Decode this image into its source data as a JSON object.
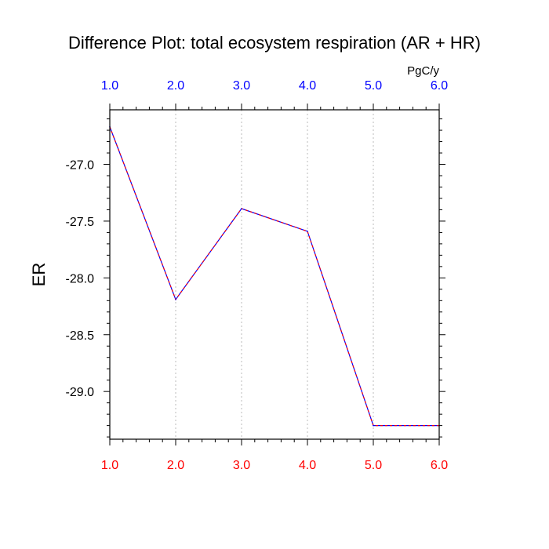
{
  "chart_data": {
    "type": "line",
    "title": "Difference Plot: total ecosystem respiration (AR + HR)",
    "units": "PgC/y",
    "ylabel": "ER",
    "xlabel": "",
    "xlim": [
      1.0,
      6.0
    ],
    "ylim": [
      -29.42,
      -26.52
    ],
    "x": [
      1.0,
      2.0,
      3.0,
      4.0,
      5.0,
      6.0
    ],
    "x_tick_labels": [
      "1.0",
      "2.0",
      "3.0",
      "4.0",
      "5.0",
      "6.0"
    ],
    "y_tick_values": [
      -27.0,
      -27.5,
      -28.0,
      -28.5,
      -29.0
    ],
    "y_tick_labels": [
      "-27.0",
      "-27.5",
      "-28.0",
      "-28.5",
      "-29.0"
    ],
    "series": [
      {
        "values": [
          -26.67,
          -28.19,
          -27.39,
          -27.59,
          -29.3,
          -29.3
        ],
        "colors": [
          "#0000ff",
          "#ff0000"
        ],
        "style": "dashed"
      }
    ],
    "grid": "vertical dotted lines at major x ticks",
    "top_axis_label_color": "#0000ff",
    "bottom_axis_label_color": "#ff0000"
  }
}
